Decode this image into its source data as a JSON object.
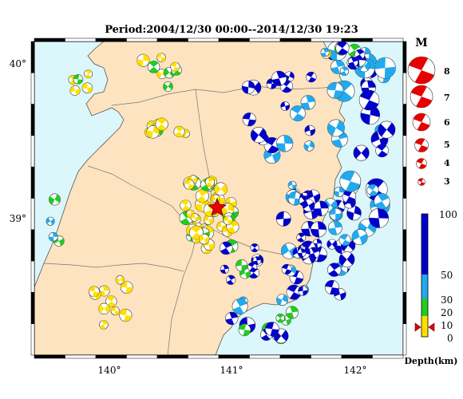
{
  "title": "Period:2004/12/30 00:00--2014/12/30 19:23",
  "map": {
    "lon_ticks": [
      "140°",
      "141°",
      "142°"
    ],
    "lat_ticks": [
      "40°",
      "39°"
    ],
    "colors": {
      "land": "#fde3c0",
      "sea": "#dcf7fb",
      "border": "#000000"
    }
  },
  "magnitude_legend": {
    "title": "M",
    "levels": [
      "8",
      "7",
      "6",
      "5",
      "4",
      "3"
    ]
  },
  "depth_scale": {
    "title": "Depth(km)",
    "ticks": [
      "100",
      "50",
      "30",
      "20",
      "10",
      "0"
    ],
    "colors": {
      "shallow": "#ffe000",
      "mid": "#22cc22",
      "deep1": "#22aaee",
      "deep2": "#0000cc"
    }
  },
  "mainshock_icon": "red-star-icon"
}
